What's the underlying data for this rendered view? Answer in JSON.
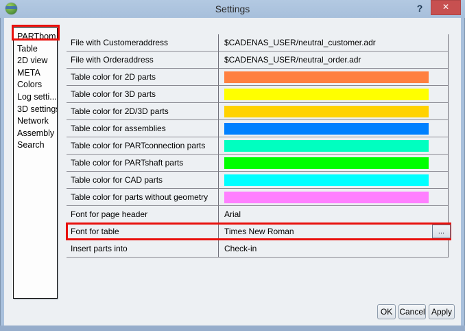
{
  "window": {
    "title": "Settings",
    "help_glyph": "?",
    "close_glyph": "✕"
  },
  "sidebar": {
    "items": [
      "PARTbom",
      "Table",
      "2D view",
      "META",
      "Colors",
      "Log setti...",
      "3D settings",
      "Network",
      "Assembly",
      "Search"
    ],
    "selected": "PARTbom"
  },
  "settings": {
    "rows": [
      {
        "label": "File with Customeraddress",
        "type": "text",
        "value": "$CADENAS_USER/neutral_customer.adr"
      },
      {
        "label": "File with Orderaddress",
        "type": "text",
        "value": "$CADENAS_USER/neutral_order.adr"
      },
      {
        "label": "Table color for 2D parts",
        "type": "color",
        "value": "#ff8040"
      },
      {
        "label": "Table color for 3D parts",
        "type": "color",
        "value": "#ffff00"
      },
      {
        "label": "Table color for 2D/3D parts",
        "type": "color",
        "value": "#ffd200"
      },
      {
        "label": "Table color for assemblies",
        "type": "color",
        "value": "#0080ff"
      },
      {
        "label": "Table color for PARTconnection parts",
        "type": "color",
        "value": "#00ffc0"
      },
      {
        "label": "Table color for PARTshaft parts",
        "type": "color",
        "value": "#00ff00"
      },
      {
        "label": "Table color for CAD parts",
        "type": "color",
        "value": "#00ffff"
      },
      {
        "label": "Table color for parts without geometry",
        "type": "color",
        "value": "#ff80ff"
      },
      {
        "label": "Font for page header",
        "type": "text",
        "value": "Arial"
      },
      {
        "label": "Font for table",
        "type": "text",
        "value": "Times New Roman",
        "highlighted": true,
        "button_label": "..."
      },
      {
        "label": "Insert parts into",
        "type": "text",
        "value": "Check-in"
      }
    ]
  },
  "footer": {
    "buttons": [
      "OK",
      "Cancel",
      "Apply"
    ]
  },
  "colors": {
    "highlight_red": "#e8100c",
    "titlebar_blue": "#adc6e0",
    "close_button_red": "#c75050",
    "content_background": "#edf0f3"
  }
}
